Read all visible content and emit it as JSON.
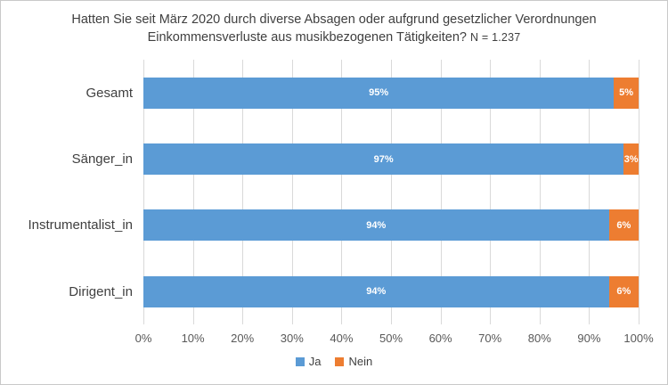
{
  "title": {
    "text": "Hatten Sie seit März 2020 durch diverse Absagen oder aufgrund gesetzlicher Verordnungen Einkommensverluste aus musikbezogenen Tätigkeiten?",
    "n_label": "N = 1.237"
  },
  "chart_data": {
    "type": "bar",
    "orientation": "horizontal",
    "stacked": true,
    "title": "Hatten Sie seit März 2020 durch diverse Absagen oder aufgrund gesetzlicher Verordnungen Einkommensverluste aus musikbezogenen Tätigkeiten? N = 1.237",
    "categories": [
      "Gesamt",
      "Sänger_in",
      "Instrumentalist_in",
      "Dirigent_in"
    ],
    "series": [
      {
        "name": "Ja",
        "color": "#5B9BD5",
        "values": [
          95,
          97,
          94,
          94
        ]
      },
      {
        "name": "Nein",
        "color": "#ED7D31",
        "values": [
          5,
          3,
          6,
          6
        ]
      }
    ],
    "value_suffix": "%",
    "xlim": [
      0,
      100
    ],
    "x_ticks": [
      "0%",
      "10%",
      "20%",
      "30%",
      "40%",
      "50%",
      "60%",
      "70%",
      "80%",
      "90%",
      "100%"
    ],
    "grid": true,
    "legend_position": "bottom",
    "data_label_color": "#FFFFFF",
    "grid_color": "#D9D9D9",
    "axis_text_color": "#595959",
    "title_color": "#404040"
  }
}
